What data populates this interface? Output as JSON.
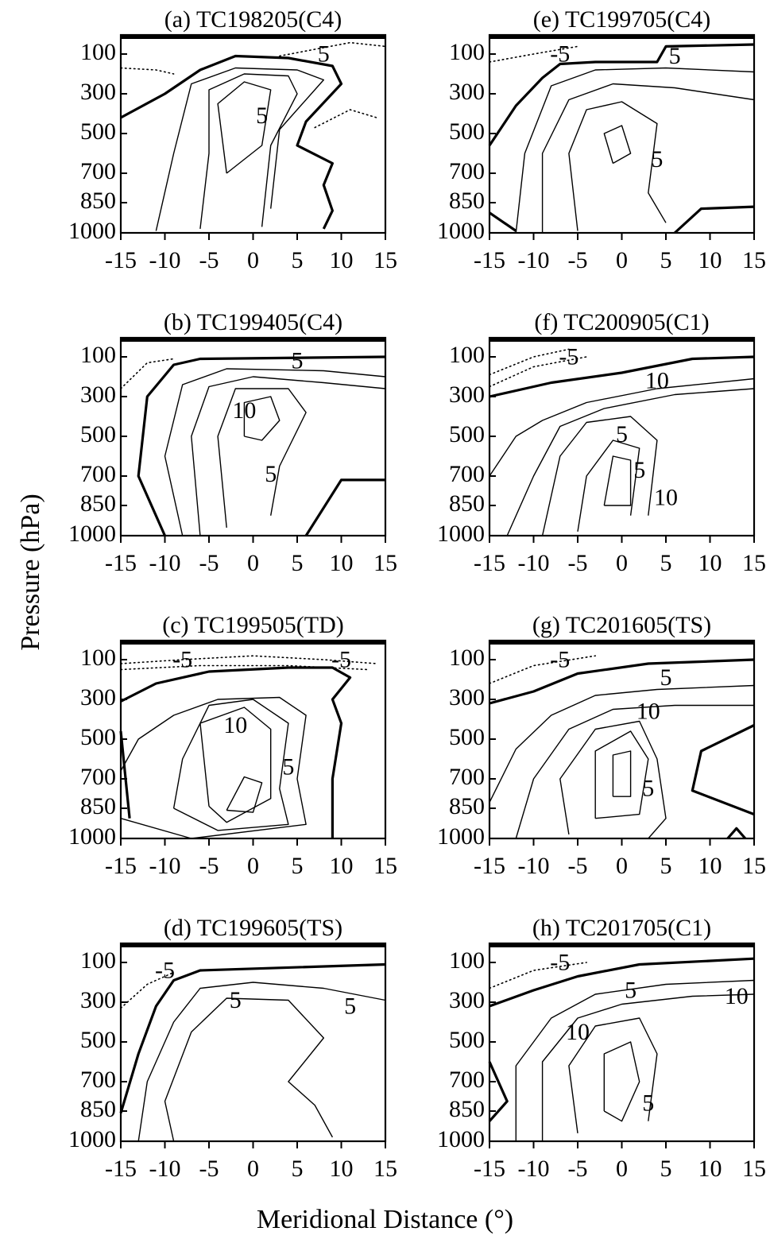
{
  "figure": {
    "y_title": "Pressure (hPa)",
    "x_title": "Meridional Distance (°)",
    "y_ticks": [
      "100",
      "300",
      "500",
      "700",
      "850",
      "1000"
    ],
    "x_ticks": [
      "-15",
      "-10",
      "-5",
      "0",
      "5",
      "10",
      "15"
    ]
  },
  "chart_data": [
    {
      "type": "contour",
      "title": "(a) TC198205(C4)",
      "xlim": [
        -15,
        15
      ],
      "ylim": [
        1000,
        50
      ],
      "contour_labels": [
        "5",
        "5"
      ],
      "zero_contour": "bold",
      "negative_contours": "dotted"
    },
    {
      "type": "contour",
      "title": "(b) TC199405(C4)",
      "xlim": [
        -15,
        15
      ],
      "ylim": [
        1000,
        50
      ],
      "contour_labels": [
        "5",
        "10",
        "5"
      ],
      "zero_contour": "bold",
      "negative_contours": "dotted"
    },
    {
      "type": "contour",
      "title": "(c) TC199505(TD)",
      "xlim": [
        -15,
        15
      ],
      "ylim": [
        1000,
        50
      ],
      "contour_labels": [
        "-5",
        "-5",
        "10",
        "5"
      ],
      "zero_contour": "bold",
      "negative_contours": "dotted"
    },
    {
      "type": "contour",
      "title": "(d) TC199605(TS)",
      "xlim": [
        -15,
        15
      ],
      "ylim": [
        1000,
        50
      ],
      "contour_labels": [
        "-5",
        "5",
        "5"
      ],
      "zero_contour": "bold",
      "negative_contours": "dotted"
    },
    {
      "type": "contour",
      "title": "(e) TC199705(C4)",
      "xlim": [
        -15,
        15
      ],
      "ylim": [
        1000,
        50
      ],
      "contour_labels": [
        "-5",
        "5",
        "5"
      ],
      "zero_contour": "bold",
      "negative_contours": "dotted"
    },
    {
      "type": "contour",
      "title": "(f) TC200905(C1)",
      "xlim": [
        -15,
        15
      ],
      "ylim": [
        1000,
        50
      ],
      "contour_labels": [
        "-5",
        "10",
        "5",
        "10",
        "5"
      ],
      "zero_contour": "bold",
      "negative_contours": "dotted"
    },
    {
      "type": "contour",
      "title": "(g) TC201605(TS)",
      "xlim": [
        -15,
        15
      ],
      "ylim": [
        1000,
        50
      ],
      "contour_labels": [
        "-5",
        "5",
        "10",
        "5"
      ],
      "zero_contour": "bold",
      "negative_contours": "dotted"
    },
    {
      "type": "contour",
      "title": "(h) TC201705(C1)",
      "xlim": [
        -15,
        15
      ],
      "ylim": [
        1000,
        50
      ],
      "contour_labels": [
        "-5",
        "5",
        "10",
        "10",
        "5"
      ],
      "zero_contour": "bold",
      "negative_contours": "dotted"
    }
  ]
}
